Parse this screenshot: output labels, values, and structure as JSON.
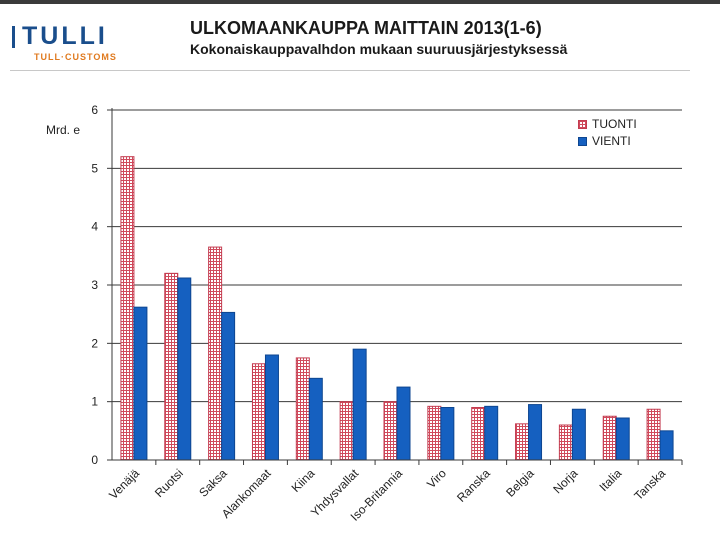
{
  "header": {
    "logo_word": "TULLI",
    "logo_sub": "TULL·CUSTOMS",
    "title": "ULKOMAANKAUPPA MAITTAIN 2013(1-6)",
    "subtitle": "Kokonaiskauppavalhdon mukaan suuruusjärjestyksessä"
  },
  "colors": {
    "import_line": "#d04a5c",
    "export_fill": "#1560c0",
    "logo_blue": "#1a4e8c",
    "logo_orange": "#e07a1f"
  },
  "chart_data": {
    "type": "bar",
    "ylabel": "Mrd. e",
    "ylim": [
      0,
      6
    ],
    "yticks": [
      0,
      1,
      2,
      3,
      4,
      5,
      6
    ],
    "grid": true,
    "legend_position": "top-right",
    "categories": [
      "Venäjä",
      "Ruotsi",
      "Saksa",
      "Alankomaat",
      "Kiina",
      "Yhdysvallat",
      "Iso-Britannia",
      "Viro",
      "Ranska",
      "Belgia",
      "Norja",
      "Italia",
      "Tanska"
    ],
    "series": [
      {
        "name": "TUONTI",
        "values": [
          5.2,
          3.2,
          3.65,
          1.65,
          1.75,
          1.0,
          1.0,
          0.92,
          0.9,
          0.62,
          0.6,
          0.75,
          0.87
        ]
      },
      {
        "name": "VIENTI",
        "values": [
          2.62,
          3.12,
          2.53,
          1.8,
          1.4,
          1.9,
          1.25,
          0.9,
          0.92,
          0.95,
          0.87,
          0.72,
          0.5
        ]
      }
    ]
  }
}
